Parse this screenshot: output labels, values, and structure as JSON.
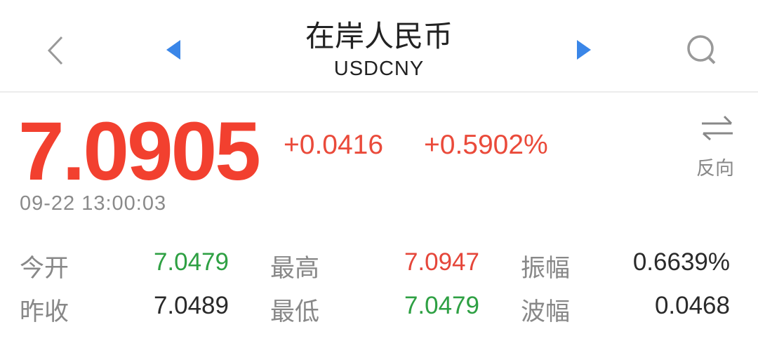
{
  "header": {
    "title": "在岸人民币",
    "symbol": "USDCNY",
    "back_icon": "chevron-left-icon",
    "prev_icon": "triangle-left-icon",
    "next_icon": "triangle-right-icon",
    "search_icon": "search-icon",
    "arrow_color": "#3a86e8"
  },
  "quote": {
    "price": "7.0905",
    "change": "+0.0416",
    "change_pct": "+0.5902%",
    "timestamp": "09-22 13:00:03",
    "reverse_label": "反向",
    "reverse_icon": "swap-arrows-icon",
    "up_color": "#f2402f",
    "down_color": "#2ea043"
  },
  "stats": [
    {
      "label": "今开",
      "value": "7.0479",
      "color": "green"
    },
    {
      "label": "最高",
      "value": "7.0947",
      "color": "red"
    },
    {
      "label": "振幅",
      "value": "0.6639%",
      "color": "dark"
    },
    {
      "label": "昨收",
      "value": "7.0489",
      "color": "dark"
    },
    {
      "label": "最低",
      "value": "7.0479",
      "color": "green"
    },
    {
      "label": "波幅",
      "value": "0.0468",
      "color": "dark"
    }
  ]
}
